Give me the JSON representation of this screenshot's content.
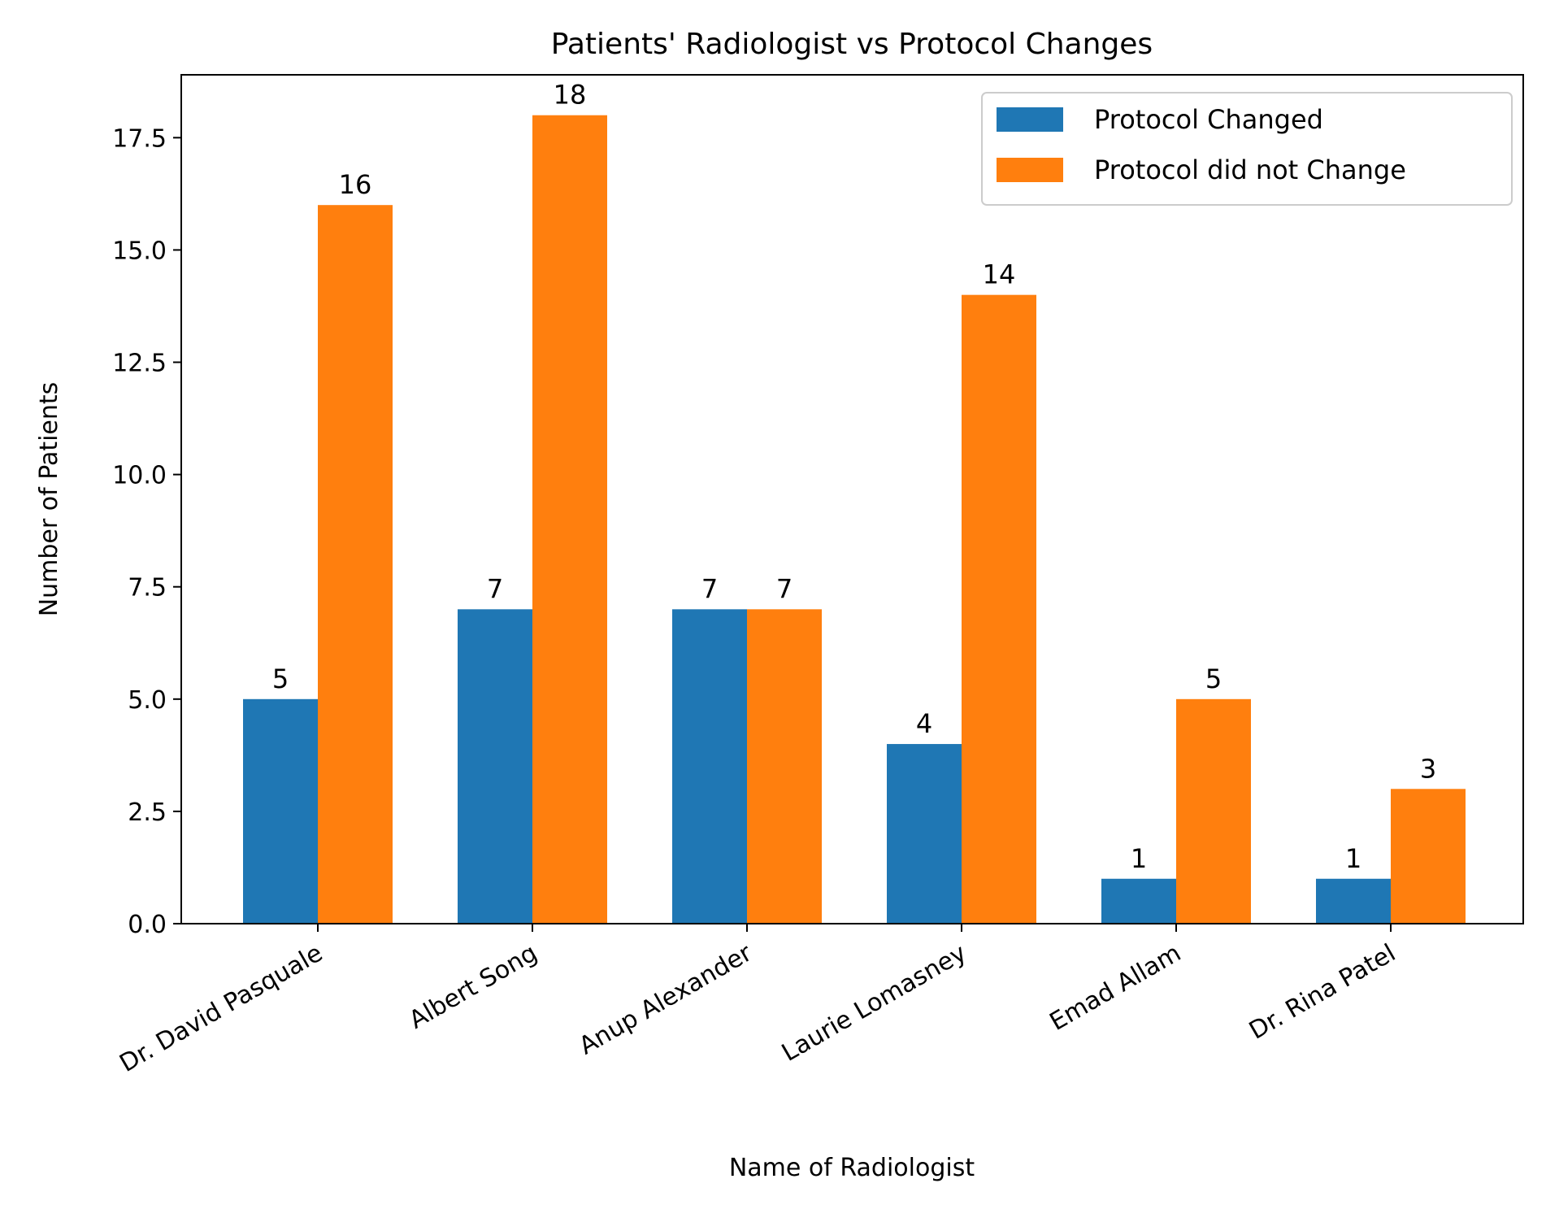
{
  "chart_data": {
    "type": "bar",
    "title": "Patients' Radiologist vs Protocol Changes",
    "xlabel": "Name of Radiologist",
    "ylabel": "Number of Patients",
    "categories": [
      "Dr. David Pasquale",
      "Albert Song",
      "Anup Alexander",
      "Laurie Lomasney",
      "Emad Allam",
      "Dr. Rina Patel"
    ],
    "series": [
      {
        "name": "Protocol Changed",
        "color": "#1f77b4",
        "values": [
          5,
          7,
          7,
          4,
          1,
          1
        ]
      },
      {
        "name": "Protocol did not Change",
        "color": "#ff7f0e",
        "values": [
          16,
          18,
          7,
          14,
          5,
          3
        ]
      }
    ],
    "ylim": [
      0,
      18.9
    ],
    "yticks": [
      "0.0",
      "2.5",
      "5.0",
      "7.5",
      "10.0",
      "12.5",
      "15.0",
      "17.5"
    ],
    "ytick_values": [
      0,
      2.5,
      5,
      7.5,
      10,
      12.5,
      15,
      17.5
    ],
    "grid": false,
    "legend_position": "top-right",
    "bar_value_labels": true
  }
}
